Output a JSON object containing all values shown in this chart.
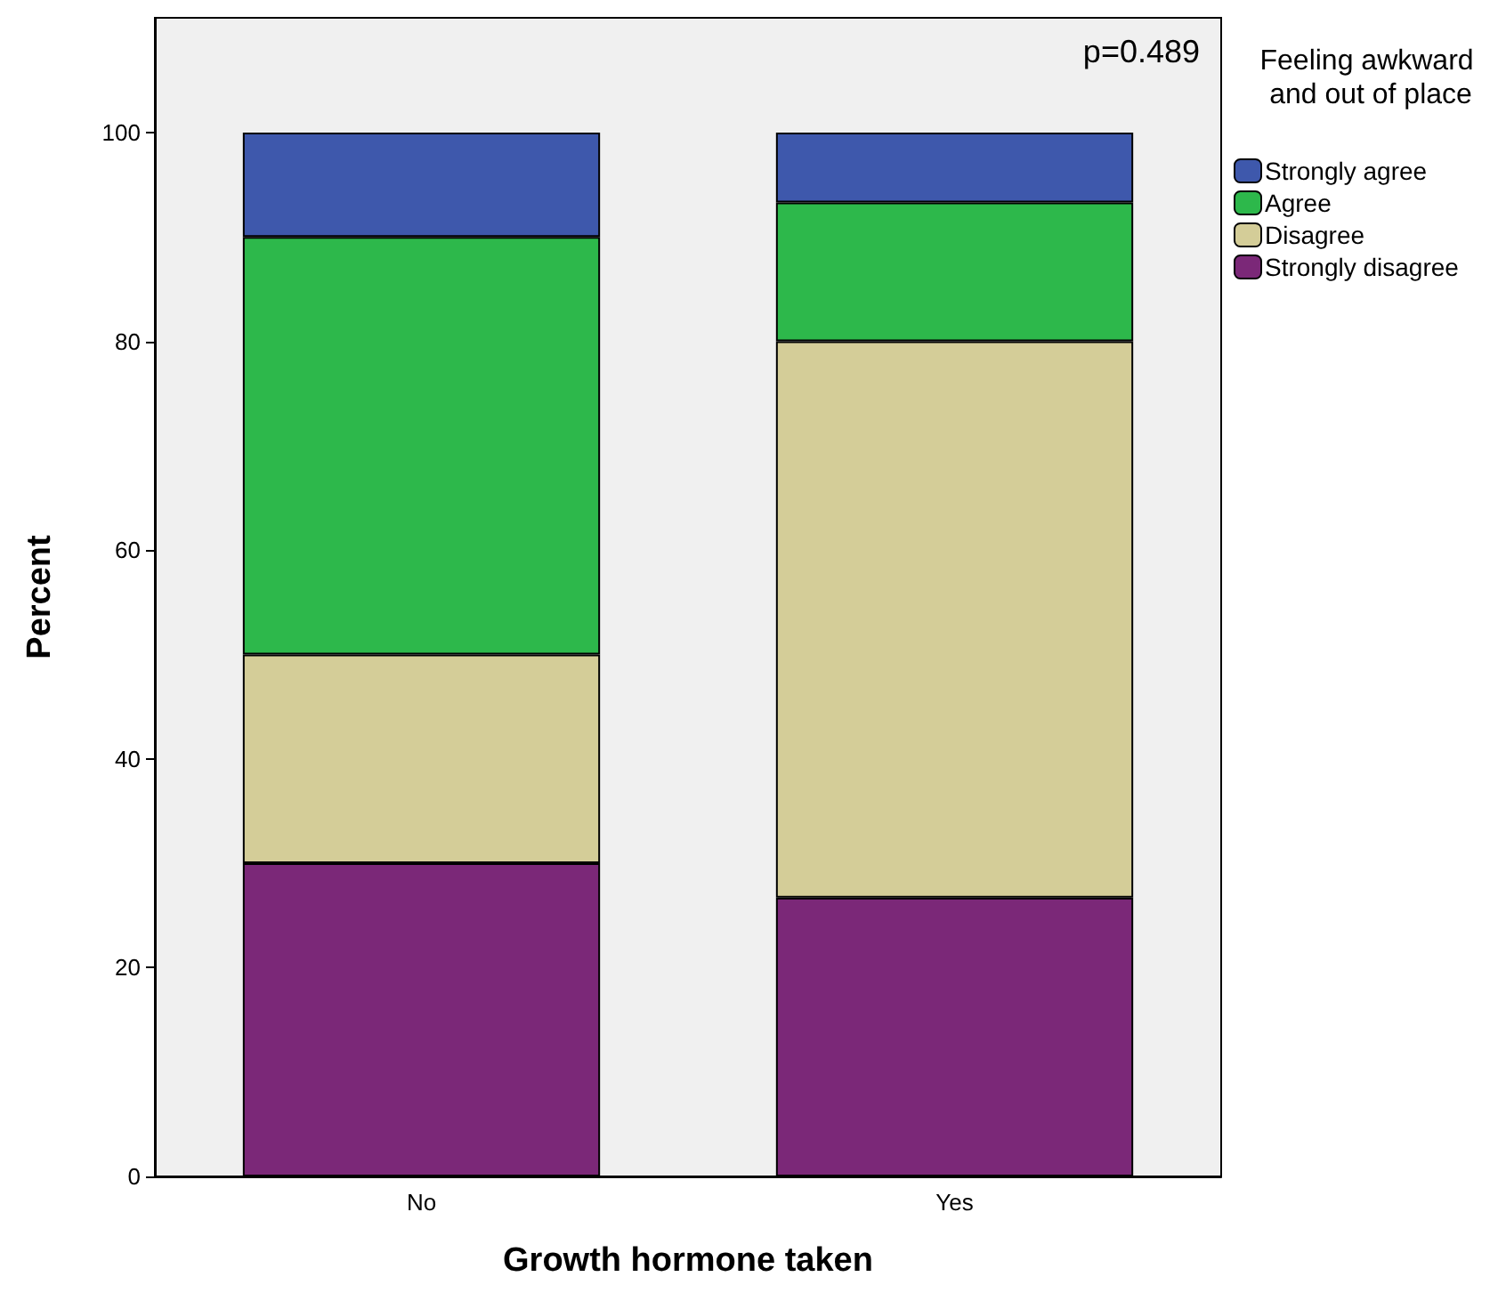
{
  "chart_data": {
    "type": "bar",
    "stacked": true,
    "xlabel": "Growth hormone taken",
    "ylabel": "Percent",
    "legend_title": "Feeling awkward and out of place",
    "legend": "right",
    "annotations": [
      "p=0.489"
    ],
    "categories": [
      "No",
      "Yes"
    ],
    "series": [
      {
        "name": "Strongly disagree",
        "color": "#7b2878",
        "values": [
          30,
          26.7
        ]
      },
      {
        "name": "Disagree",
        "color": "#d4cd98",
        "values": [
          20,
          53.3
        ]
      },
      {
        "name": "Agree",
        "color": "#2db84b",
        "values": [
          40,
          13.3
        ]
      },
      {
        "name": "Strongly agree",
        "color": "#3e58ac",
        "values": [
          10,
          6.7
        ]
      }
    ],
    "ylim": [
      0,
      111
    ],
    "yticks": [
      0,
      20,
      40,
      60,
      80,
      100
    ]
  }
}
